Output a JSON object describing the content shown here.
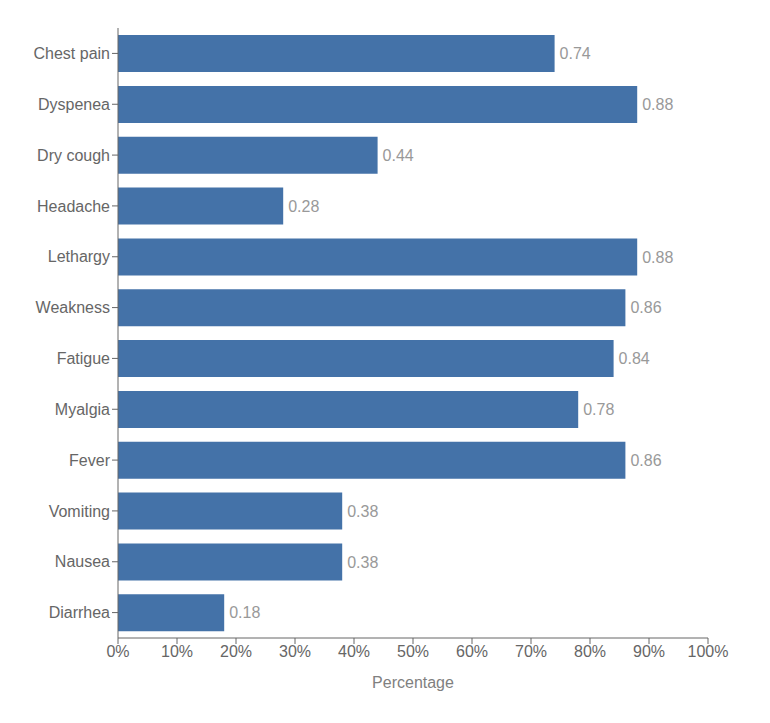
{
  "chart_data": {
    "type": "bar",
    "orientation": "horizontal",
    "categories": [
      "Chest pain",
      "Dyspenea",
      "Dry cough",
      "Headache",
      "Lethargy",
      "Weakness",
      "Fatigue",
      "Myalgia",
      "Fever",
      "Vomiting",
      "Nausea",
      "Diarrhea"
    ],
    "values": [
      0.74,
      0.88,
      0.44,
      0.28,
      0.88,
      0.86,
      0.84,
      0.78,
      0.86,
      0.38,
      0.38,
      0.18
    ],
    "color": "#4472a8",
    "xlabel": "Percentage",
    "xlim": [
      0,
      1.0
    ],
    "xticks": [
      {
        "value": 0,
        "label": "0%"
      },
      {
        "value": 0.1,
        "label": "10%"
      },
      {
        "value": 0.2,
        "label": "20%"
      },
      {
        "value": 0.3,
        "label": "30%"
      },
      {
        "value": 0.4,
        "label": "40%"
      },
      {
        "value": 0.5,
        "label": "50%"
      },
      {
        "value": 0.6,
        "label": "60%"
      },
      {
        "value": 0.7,
        "label": "70%"
      },
      {
        "value": 0.8,
        "label": "80%"
      },
      {
        "value": 0.9,
        "label": "90%"
      },
      {
        "value": 1.0,
        "label": "100%"
      }
    ],
    "data_labels": true,
    "grid": false
  }
}
